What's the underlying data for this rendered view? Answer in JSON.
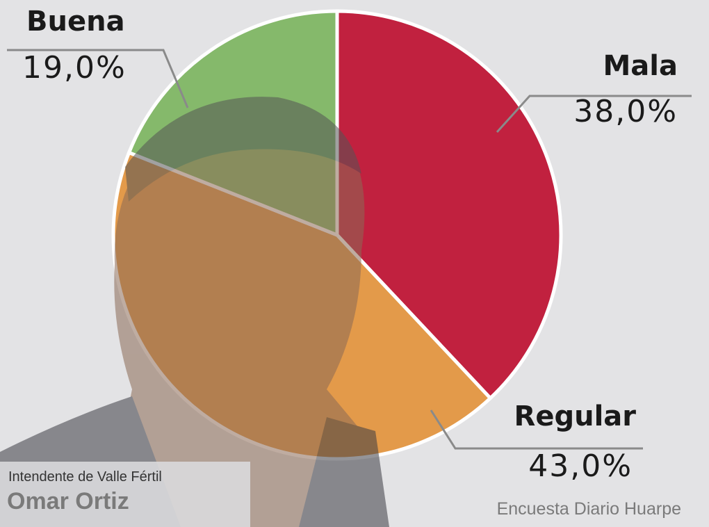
{
  "chart_data": {
    "type": "pie",
    "categories": [
      "Mala",
      "Regular",
      "Buena"
    ],
    "values": [
      38,
      43,
      19
    ],
    "value_labels": [
      "38,0%",
      "43,0%",
      "19,0%"
    ],
    "colors": [
      "#c1213f",
      "#e39a4a",
      "#85b96b"
    ],
    "caption_title": "Intendente de Valle Fértil",
    "caption_name": "Omar Ortiz",
    "source": "Encuesta Diario Huarpe"
  }
}
